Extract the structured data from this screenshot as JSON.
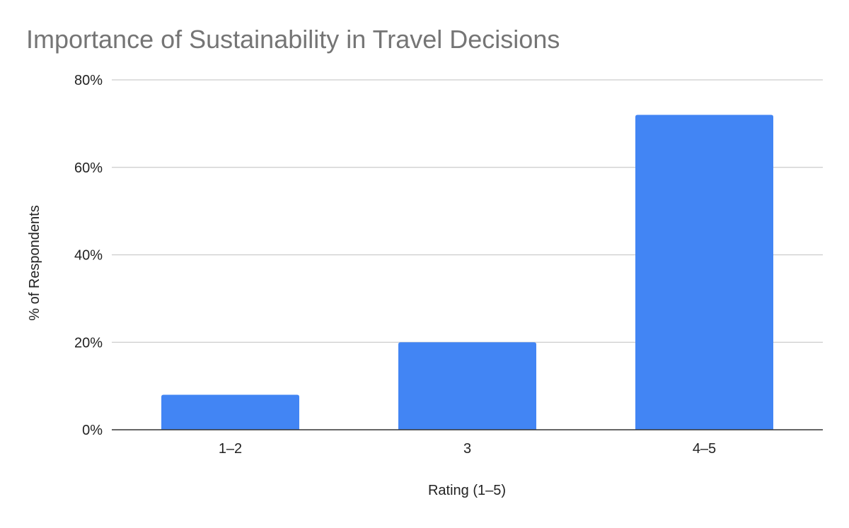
{
  "chart_data": {
    "type": "bar",
    "title": "Importance of Sustainability in Travel Decisions",
    "xlabel": "Rating (1–5)",
    "ylabel": "% of Respondents",
    "categories": [
      "1–2",
      "3",
      "4–5"
    ],
    "values": [
      8,
      20,
      72
    ],
    "ylim": [
      0,
      80
    ],
    "yticks": [
      0,
      20,
      40,
      60,
      80
    ],
    "ytick_labels": [
      "0%",
      "20%",
      "40%",
      "60%",
      "80%"
    ],
    "grid": true,
    "legend": "none",
    "colors": {
      "bar": "#4285f4",
      "grid": "#cccccc",
      "title": "#757575",
      "axis": "#333333"
    }
  }
}
